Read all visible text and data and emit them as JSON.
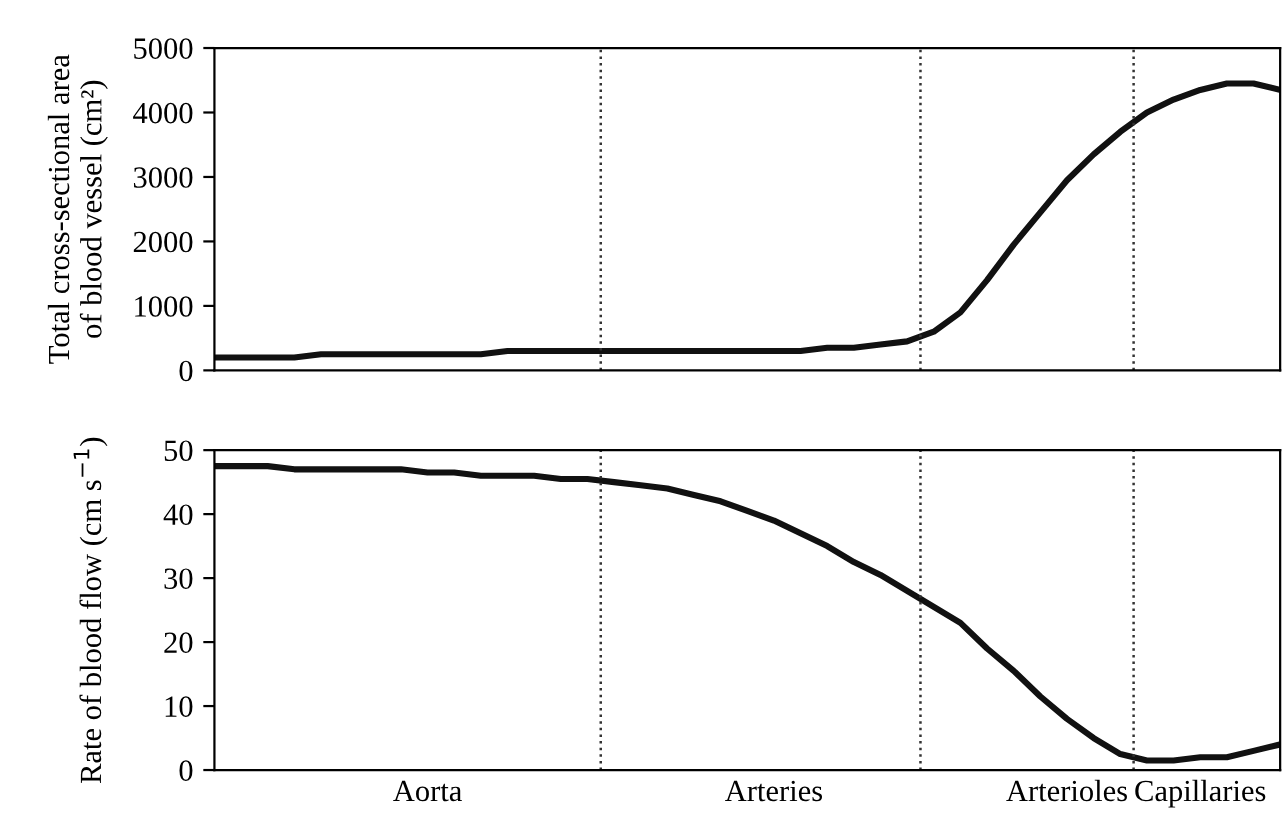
{
  "chart_data": [
    {
      "type": "line",
      "ylabel": "Total cross-sectional area\nof blood vessel (cm²)",
      "tick_labels": "y",
      "categories": [
        null,
        null,
        null,
        null,
        null,
        null,
        null,
        null,
        null,
        null,
        null,
        null,
        null,
        null,
        null,
        null,
        null,
        null,
        null,
        null,
        null,
        null,
        null,
        null,
        null,
        null,
        null,
        null,
        null,
        null,
        null,
        null,
        null,
        null,
        null,
        null,
        null,
        null,
        null,
        null,
        null
      ],
      "series": [
        {
          "color": "#111111",
          "values": [
            200,
            200,
            200,
            200,
            250,
            250,
            250,
            250,
            250,
            250,
            250,
            300,
            300,
            300,
            300,
            300,
            300,
            300,
            300,
            300,
            300,
            300,
            300,
            350,
            350,
            400,
            450,
            600,
            900,
            1400,
            1950,
            2450,
            2950,
            3350,
            3700,
            4000,
            4200,
            4350,
            4450,
            4450,
            4350
          ]
        }
      ],
      "ylim": [
        0,
        5000
      ],
      "yticks": [
        0,
        1000,
        2000,
        3000,
        4000,
        5000
      ],
      "line_style": "solid"
    },
    {
      "type": "line",
      "ylabel": "Rate of blood flow (cm s$^{−1}$)",
      "categories": [
        null,
        null,
        null,
        null,
        null,
        null,
        null,
        null,
        "Aorta",
        null,
        null,
        null,
        null,
        null,
        null,
        null,
        null,
        null,
        null,
        null,
        null,
        "Arteries",
        null,
        null,
        null,
        null,
        null,
        null,
        null,
        null,
        null,
        null,
        "Arterioles",
        null,
        null,
        null,
        null,
        "Capillaries",
        null,
        null,
        null
      ],
      "series": [
        {
          "color": "#111111",
          "values": [
            47.5,
            47.5,
            47.5,
            47,
            47,
            47,
            47,
            47,
            46.5,
            46.5,
            46,
            46,
            46,
            45.5,
            45.5,
            45,
            44.5,
            44,
            43,
            42,
            40.5,
            39,
            37,
            35,
            32.5,
            30.5,
            28,
            25.5,
            23,
            19,
            15.5,
            11.5,
            8,
            5,
            2.5,
            1.5,
            1.5,
            2,
            2,
            3,
            4
          ]
        }
      ],
      "ylim": [
        0,
        50
      ],
      "yticks": [
        0,
        10,
        20,
        30,
        40,
        50
      ],
      "line_style": "solid"
    }
  ]
}
